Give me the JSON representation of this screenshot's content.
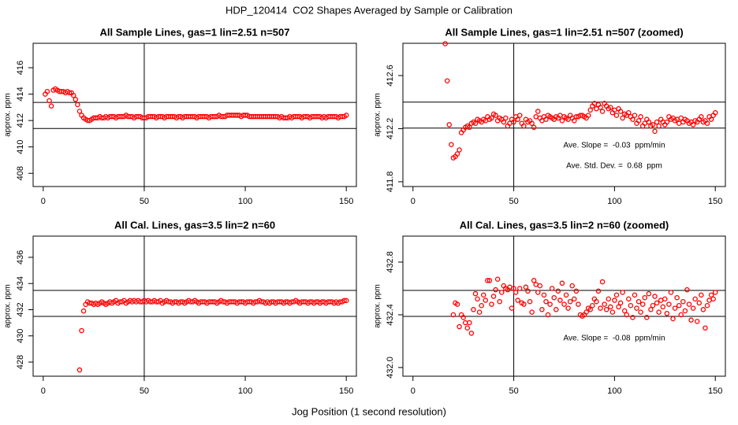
{
  "title": "HDP_120414  CO2 Shapes Averaged by Sample or Calibration",
  "xlabel": "Jog Position (1 second resolution)",
  "chart_data": [
    {
      "type": "scatter",
      "title": "All Sample Lines, gas=1 lin=2.51 n=507",
      "ylabel": "approx. ppm",
      "color": "#ff0000",
      "xlim": [
        -5,
        155
      ],
      "ylim": [
        407,
        417.85
      ],
      "xticks": [
        0,
        50,
        100,
        150
      ],
      "yticks": [
        408,
        410,
        412,
        414,
        416
      ],
      "hlines": [
        413.37,
        411.4
      ],
      "vline": 50,
      "x": [
        1,
        2,
        3,
        4,
        5,
        6,
        7,
        8,
        9,
        10,
        11,
        12,
        13,
        14,
        15,
        16,
        17,
        18,
        19,
        20,
        21,
        22,
        23,
        24,
        25,
        26,
        27,
        28,
        29,
        30,
        31,
        32,
        33,
        34,
        35,
        36,
        37,
        38,
        39,
        40,
        41,
        42,
        43,
        44,
        45,
        46,
        47,
        48,
        49,
        50,
        51,
        52,
        53,
        54,
        55,
        56,
        57,
        58,
        59,
        60,
        61,
        62,
        63,
        64,
        65,
        66,
        67,
        68,
        69,
        70,
        71,
        72,
        73,
        74,
        75,
        76,
        77,
        78,
        79,
        80,
        81,
        82,
        83,
        84,
        85,
        86,
        87,
        88,
        89,
        90,
        91,
        92,
        93,
        94,
        95,
        96,
        97,
        98,
        99,
        100,
        101,
        102,
        103,
        104,
        105,
        106,
        107,
        108,
        109,
        110,
        111,
        112,
        113,
        114,
        115,
        116,
        117,
        118,
        119,
        120,
        121,
        122,
        123,
        124,
        125,
        126,
        127,
        128,
        129,
        130,
        131,
        132,
        133,
        134,
        135,
        136,
        137,
        138,
        139,
        140,
        141,
        142,
        143,
        144,
        145,
        146,
        147,
        148,
        149,
        150
      ],
      "values": [
        414.0,
        414.2,
        413.5,
        413.1,
        414.3,
        414.4,
        414.3,
        414.2,
        414.2,
        414.2,
        414.1,
        414.2,
        414.1,
        414.1,
        413.9,
        413.6,
        413.2,
        412.7,
        412.4,
        412.2,
        412.1,
        412.0,
        412.0,
        412.1,
        412.2,
        412.2,
        412.2,
        412.3,
        412.2,
        412.2,
        412.3,
        412.2,
        412.3,
        412.3,
        412.3,
        412.2,
        412.3,
        412.3,
        412.3,
        412.3,
        412.4,
        412.3,
        412.3,
        412.3,
        412.2,
        412.3,
        412.3,
        412.3,
        412.2,
        412.2,
        412.2,
        412.3,
        412.3,
        412.3,
        412.3,
        412.2,
        412.3,
        412.3,
        412.3,
        412.2,
        412.3,
        412.3,
        412.3,
        412.3,
        412.3,
        412.2,
        412.3,
        412.3,
        412.2,
        412.3,
        412.3,
        412.3,
        412.3,
        412.3,
        412.3,
        412.2,
        412.3,
        412.3,
        412.3,
        412.3,
        412.3,
        412.2,
        412.3,
        412.3,
        412.3,
        412.3,
        412.4,
        412.3,
        412.3,
        412.3,
        412.4,
        412.4,
        412.4,
        412.4,
        412.4,
        412.4,
        412.4,
        412.3,
        412.4,
        412.4,
        412.4,
        412.3,
        412.3,
        412.3,
        412.3,
        412.3,
        412.3,
        412.3,
        412.3,
        412.3,
        412.3,
        412.3,
        412.3,
        412.3,
        412.3,
        412.3,
        412.2,
        412.3,
        412.2,
        412.2,
        412.2,
        412.3,
        412.2,
        412.3,
        412.3,
        412.3,
        412.3,
        412.2,
        412.3,
        412.3,
        412.3,
        412.2,
        412.3,
        412.3,
        412.3,
        412.3,
        412.3,
        412.2,
        412.3,
        412.2,
        412.3,
        412.3,
        412.3,
        412.3,
        412.3,
        412.2,
        412.3,
        412.3,
        412.3,
        412.4
      ]
    },
    {
      "type": "scatter",
      "title": "All Sample Lines, gas=1 lin=2.51 n=507 (zoomed)",
      "ylabel": "approx. ppm",
      "color": "#ff0000",
      "xlim": [
        -5,
        155
      ],
      "ylim": [
        411.764,
        412.843
      ],
      "xticks": [
        0,
        50,
        100,
        150
      ],
      "yticks": [
        411.8,
        412.2,
        412.6
      ],
      "hlines": [
        412.4,
        412.204
      ],
      "vline": 50,
      "annotations": [
        "Ave. Slope =  -0.03  ppm/min",
        "Ave. Std. Dev. =  0.68  ppm"
      ],
      "x": [
        16,
        17,
        18,
        19,
        20,
        21,
        22,
        23,
        24,
        25,
        26,
        27,
        28,
        29,
        30,
        31,
        32,
        33,
        34,
        35,
        36,
        37,
        38,
        39,
        40,
        41,
        42,
        43,
        44,
        45,
        46,
        47,
        48,
        49,
        50,
        51,
        52,
        53,
        54,
        55,
        56,
        57,
        58,
        59,
        60,
        61,
        62,
        63,
        64,
        65,
        66,
        67,
        68,
        69,
        70,
        71,
        72,
        73,
        74,
        75,
        76,
        77,
        78,
        79,
        80,
        81,
        82,
        83,
        84,
        85,
        86,
        87,
        88,
        89,
        90,
        91,
        92,
        93,
        94,
        95,
        96,
        97,
        98,
        99,
        100,
        101,
        102,
        103,
        104,
        105,
        106,
        107,
        108,
        109,
        110,
        111,
        112,
        113,
        114,
        115,
        116,
        117,
        118,
        119,
        120,
        121,
        122,
        123,
        124,
        125,
        126,
        127,
        128,
        129,
        130,
        131,
        132,
        133,
        134,
        135,
        136,
        137,
        138,
        139,
        140,
        141,
        142,
        143,
        144,
        145,
        146,
        147,
        148,
        149,
        150
      ],
      "values": [
        412.84,
        412.56,
        412.23,
        412.08,
        411.98,
        411.99,
        412.01,
        412.04,
        412.17,
        412.19,
        412.21,
        412.22,
        412.21,
        412.24,
        412.25,
        412.24,
        412.27,
        412.26,
        412.25,
        412.27,
        412.26,
        412.29,
        412.27,
        412.28,
        412.31,
        412.3,
        412.26,
        412.28,
        412.27,
        412.25,
        412.28,
        412.22,
        412.24,
        412.27,
        412.25,
        412.29,
        412.27,
        412.3,
        412.24,
        412.22,
        412.27,
        412.25,
        412.26,
        412.24,
        412.21,
        412.29,
        412.33,
        412.28,
        412.26,
        412.29,
        412.27,
        412.3,
        412.29,
        412.28,
        412.27,
        412.29,
        412.28,
        412.3,
        412.26,
        412.29,
        412.28,
        412.27,
        412.3,
        412.28,
        412.26,
        412.29,
        412.29,
        412.3,
        412.3,
        412.29,
        412.28,
        412.3,
        412.34,
        412.37,
        412.39,
        412.35,
        412.38,
        412.36,
        412.33,
        412.39,
        412.37,
        412.35,
        412.36,
        412.32,
        412.34,
        412.3,
        412.35,
        412.33,
        412.28,
        412.31,
        412.3,
        412.32,
        412.29,
        412.27,
        412.3,
        412.24,
        412.26,
        412.29,
        412.22,
        412.24,
        412.27,
        412.25,
        412.22,
        412.23,
        412.18,
        412.25,
        412.22,
        412.27,
        412.25,
        412.23,
        412.25,
        412.29,
        412.27,
        412.28,
        412.26,
        412.27,
        412.24,
        412.28,
        412.25,
        412.27,
        412.26,
        412.24,
        412.25,
        412.23,
        412.26,
        412.25,
        412.27,
        412.29,
        412.25,
        412.26,
        412.24,
        412.29,
        412.27,
        412.3,
        412.32
      ]
    },
    {
      "type": "scatter",
      "title": "All Cal. Lines, gas=3.5 lin=2 n=60",
      "ylabel": "approx. ppm",
      "color": "#ff0000",
      "xlim": [
        -5,
        155
      ],
      "ylim": [
        426.92,
        437.62
      ],
      "xticks": [
        0,
        50,
        100,
        150
      ],
      "yticks": [
        428,
        430,
        432,
        434,
        436
      ],
      "hlines": [
        433.47,
        431.49
      ],
      "vline": 50,
      "x": [
        18,
        19,
        20,
        21,
        22,
        23,
        24,
        25,
        26,
        27,
        28,
        29,
        30,
        31,
        32,
        33,
        34,
        35,
        36,
        37,
        38,
        39,
        40,
        41,
        42,
        43,
        44,
        45,
        46,
        47,
        48,
        49,
        50,
        51,
        52,
        53,
        54,
        55,
        56,
        57,
        58,
        59,
        60,
        61,
        62,
        63,
        64,
        65,
        66,
        67,
        68,
        69,
        70,
        71,
        72,
        73,
        74,
        75,
        76,
        77,
        78,
        79,
        80,
        81,
        82,
        83,
        84,
        85,
        86,
        87,
        88,
        89,
        90,
        91,
        92,
        93,
        94,
        95,
        96,
        97,
        98,
        99,
        100,
        101,
        102,
        103,
        104,
        105,
        106,
        107,
        108,
        109,
        110,
        111,
        112,
        113,
        114,
        115,
        116,
        117,
        118,
        119,
        120,
        121,
        122,
        123,
        124,
        125,
        126,
        127,
        128,
        129,
        130,
        131,
        132,
        133,
        134,
        135,
        136,
        137,
        138,
        139,
        140,
        141,
        142,
        143,
        144,
        145,
        146,
        147,
        148,
        149,
        150
      ],
      "values": [
        427.4,
        430.4,
        431.9,
        432.4,
        432.6,
        432.5,
        432.5,
        432.4,
        432.5,
        432.4,
        432.5,
        432.6,
        432.5,
        432.4,
        432.5,
        432.6,
        432.5,
        432.6,
        432.7,
        432.5,
        432.6,
        432.6,
        432.7,
        432.5,
        432.6,
        432.7,
        432.6,
        432.7,
        432.6,
        432.7,
        432.6,
        432.6,
        432.7,
        432.6,
        432.7,
        432.6,
        432.6,
        432.7,
        432.6,
        432.6,
        432.7,
        432.5,
        432.6,
        432.7,
        432.6,
        432.6,
        432.5,
        432.6,
        432.6,
        432.5,
        432.6,
        432.6,
        432.5,
        432.6,
        432.7,
        432.6,
        432.6,
        432.7,
        432.6,
        432.5,
        432.6,
        432.6,
        432.6,
        432.5,
        432.6,
        432.6,
        432.6,
        432.6,
        432.5,
        432.6,
        432.7,
        432.6,
        432.6,
        432.5,
        432.6,
        432.6,
        432.6,
        432.6,
        432.5,
        432.6,
        432.6,
        432.6,
        432.5,
        432.6,
        432.6,
        432.6,
        432.5,
        432.6,
        432.6,
        432.7,
        432.6,
        432.6,
        432.5,
        432.6,
        432.5,
        432.6,
        432.6,
        432.5,
        432.6,
        432.6,
        432.6,
        432.5,
        432.6,
        432.6,
        432.5,
        432.6,
        432.6,
        432.7,
        432.6,
        432.5,
        432.6,
        432.6,
        432.6,
        432.5,
        432.6,
        432.6,
        432.5,
        432.6,
        432.6,
        432.5,
        432.6,
        432.6,
        432.5,
        432.6,
        432.6,
        432.6,
        432.5,
        432.6,
        432.5,
        432.6,
        432.6,
        432.7,
        432.7
      ]
    },
    {
      "type": "scatter",
      "title": "All Cal. Lines, gas=3.5 lin=2 n=60 (zoomed)",
      "ylabel": "approx. ppm",
      "color": "#ff0000",
      "xlim": [
        -5,
        155
      ],
      "ylim": [
        431.934,
        432.997
      ],
      "xticks": [
        0,
        50,
        100,
        150
      ],
      "yticks": [
        {
          "value": 432,
          "label": "432.0"
        },
        432.4,
        432.8
      ],
      "hlines": [
        432.585,
        432.388
      ],
      "vline": 50,
      "annotations": [
        "Ave. Slope =  -0.08  ppm/min"
      ],
      "x": [
        20,
        21,
        22,
        23,
        24,
        25,
        26,
        27,
        28,
        29,
        30,
        31,
        32,
        33,
        34,
        35,
        36,
        37,
        38,
        39,
        40,
        41,
        42,
        43,
        44,
        45,
        46,
        47,
        48,
        49,
        50,
        51,
        52,
        53,
        54,
        55,
        56,
        57,
        58,
        59,
        60,
        61,
        62,
        63,
        64,
        65,
        66,
        67,
        68,
        69,
        70,
        71,
        72,
        73,
        74,
        75,
        76,
        77,
        78,
        79,
        80,
        81,
        82,
        83,
        84,
        85,
        86,
        87,
        88,
        89,
        90,
        91,
        92,
        93,
        94,
        95,
        96,
        97,
        98,
        99,
        100,
        101,
        102,
        103,
        104,
        105,
        106,
        107,
        108,
        109,
        110,
        111,
        112,
        113,
        114,
        115,
        116,
        117,
        118,
        119,
        120,
        121,
        122,
        123,
        124,
        125,
        126,
        127,
        128,
        129,
        130,
        131,
        132,
        133,
        134,
        135,
        136,
        137,
        138,
        139,
        140,
        141,
        142,
        143,
        144,
        145,
        146,
        147,
        148,
        149,
        150
      ],
      "values": [
        432.4,
        432.49,
        432.48,
        432.31,
        432.4,
        432.38,
        432.34,
        432.3,
        432.34,
        432.26,
        432.44,
        432.56,
        432.52,
        432.42,
        432.47,
        432.55,
        432.51,
        432.66,
        432.66,
        432.48,
        432.54,
        432.59,
        432.67,
        432.5,
        432.57,
        432.62,
        432.6,
        432.59,
        432.61,
        432.45,
        432.6,
        432.57,
        432.51,
        432.6,
        432.49,
        432.48,
        432.61,
        432.58,
        432.5,
        432.42,
        432.66,
        432.63,
        432.57,
        432.62,
        432.44,
        432.55,
        432.5,
        432.4,
        432.48,
        432.6,
        432.53,
        432.44,
        432.58,
        432.51,
        432.64,
        432.48,
        432.55,
        432.45,
        432.5,
        432.62,
        432.52,
        432.58,
        432.48,
        432.4,
        432.39,
        432.4,
        432.42,
        432.45,
        432.44,
        432.47,
        432.52,
        432.5,
        432.58,
        432.45,
        432.65,
        432.48,
        432.44,
        432.52,
        432.46,
        432.42,
        432.51,
        432.55,
        432.46,
        432.49,
        432.57,
        432.43,
        432.4,
        432.52,
        432.47,
        432.38,
        432.55,
        432.45,
        432.5,
        432.42,
        432.48,
        432.53,
        432.38,
        432.56,
        432.44,
        432.47,
        432.54,
        432.49,
        432.42,
        432.51,
        432.46,
        432.52,
        432.41,
        432.48,
        432.57,
        432.37,
        432.45,
        432.53,
        432.47,
        432.4,
        432.5,
        432.43,
        432.59,
        432.48,
        432.36,
        432.45,
        432.52,
        432.35,
        432.49,
        432.55,
        432.44,
        432.3,
        432.47,
        432.51,
        432.55,
        432.52,
        432.57
      ]
    }
  ]
}
